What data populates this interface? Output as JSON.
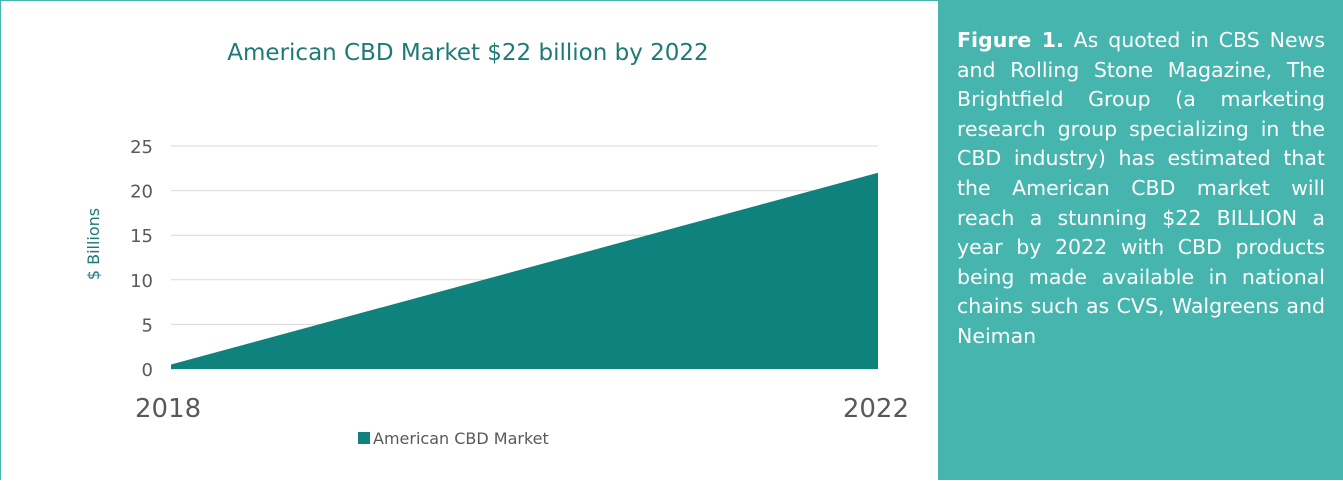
{
  "colors": {
    "area_fill": "#10827d",
    "title_color": "#1d7a75",
    "panel_bg": "#45b5ae",
    "panel_border": "#45b5ae",
    "gridline": "#d9d9d9",
    "tick_text": "#595959"
  },
  "chart_data": {
    "type": "area",
    "title": "American CBD Market $22 billion by 2022",
    "ylabel": "$ Billions",
    "xlabel": "",
    "x": [
      "2018",
      "2022"
    ],
    "series": [
      {
        "name": "American CBD Market",
        "values": [
          0.5,
          22
        ]
      }
    ],
    "ylim": [
      0,
      25
    ],
    "yticks": [
      "0",
      "5",
      "10",
      "15",
      "20",
      "25"
    ],
    "grid": true,
    "legend_position": "bottom"
  },
  "caption": {
    "label": "Figure 1.",
    "text": " As quoted in CBS News and Rolling Stone Magazine, The Brightfield Group (a marketing research group specializing in the CBD industry) has estimated that the American CBD market will reach a stunning $22 BILLION a year by 2022 with CBD products being made available in national chains such as CVS, Walgreens and Neiman"
  }
}
